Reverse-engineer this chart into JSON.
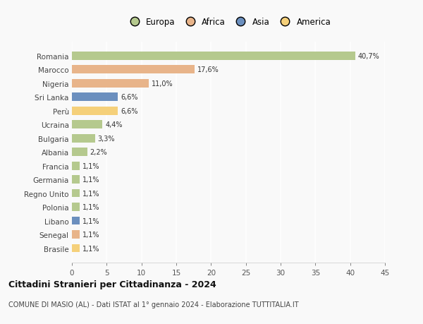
{
  "countries": [
    "Romania",
    "Marocco",
    "Nigeria",
    "Sri Lanka",
    "Perù",
    "Ucraina",
    "Bulgaria",
    "Albania",
    "Francia",
    "Germania",
    "Regno Unito",
    "Polonia",
    "Libano",
    "Senegal",
    "Brasile"
  ],
  "values": [
    40.7,
    17.6,
    11.0,
    6.6,
    6.6,
    4.4,
    3.3,
    2.2,
    1.1,
    1.1,
    1.1,
    1.1,
    1.1,
    1.1,
    1.1
  ],
  "labels": [
    "40,7%",
    "17,6%",
    "11,0%",
    "6,6%",
    "6,6%",
    "4,4%",
    "3,3%",
    "2,2%",
    "1,1%",
    "1,1%",
    "1,1%",
    "1,1%",
    "1,1%",
    "1,1%",
    "1,1%"
  ],
  "colors": [
    "#b5c98e",
    "#e8b48a",
    "#e8b48a",
    "#6b8fbe",
    "#f5d07a",
    "#b5c98e",
    "#b5c98e",
    "#b5c98e",
    "#b5c98e",
    "#b5c98e",
    "#b5c98e",
    "#b5c98e",
    "#6b8fbe",
    "#e8b48a",
    "#f5d07a"
  ],
  "legend_labels": [
    "Europa",
    "Africa",
    "Asia",
    "America"
  ],
  "legend_colors": [
    "#b5c98e",
    "#e8b48a",
    "#6b8fbe",
    "#f5d07a"
  ],
  "title": "Cittadini Stranieri per Cittadinanza - 2024",
  "subtitle": "COMUNE DI MASIO (AL) - Dati ISTAT al 1° gennaio 2024 - Elaborazione TUTTITALIA.IT",
  "xlim": [
    0,
    45
  ],
  "xticks": [
    0,
    5,
    10,
    15,
    20,
    25,
    30,
    35,
    40,
    45
  ],
  "bg_color": "#f9f9f9",
  "grid_color": "#ffffff",
  "bar_height": 0.6
}
